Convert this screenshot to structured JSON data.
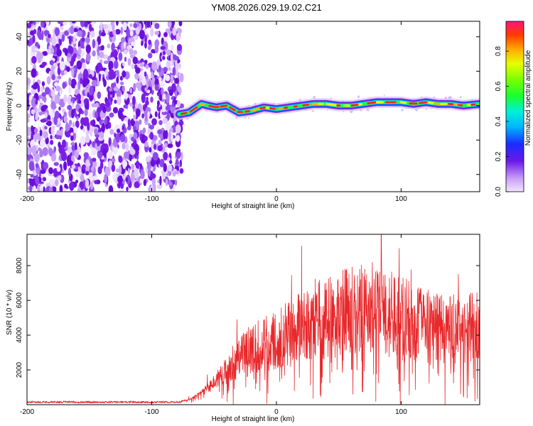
{
  "chart_data": [
    {
      "type": "heatmap",
      "title": "YM08.2026.029.19.02.C21",
      "xlabel": "Height of straight line (km)",
      "ylabel": "Frequency (Hz)",
      "xlim": [
        -200,
        163
      ],
      "ylim": [
        -50,
        49
      ],
      "xticks": [
        -200,
        -100,
        0,
        100
      ],
      "yticks": [
        -40,
        -20,
        0,
        20,
        40
      ],
      "noise_region_x": [
        -200,
        -78
      ],
      "signal_track": {
        "x": [
          -78,
          -70,
          -60,
          -55,
          -48,
          -40,
          -30,
          -20,
          -10,
          0,
          10,
          20,
          30,
          40,
          50,
          60,
          70,
          80,
          90,
          100,
          110,
          120,
          130,
          140,
          150,
          163
        ],
        "y": [
          -5,
          -4,
          1,
          0,
          -1,
          0,
          -4,
          -3,
          -1,
          -2,
          -1,
          0,
          1,
          1,
          0,
          0,
          1,
          2,
          2,
          2,
          1,
          2,
          1,
          1,
          0,
          1
        ]
      },
      "colorbar": {
        "label": "Normalized spectral amplitude",
        "ticks": [
          "0.0",
          "0.2",
          "0.4",
          "0.6",
          "0.8"
        ],
        "range": [
          0,
          0.97
        ]
      },
      "grid": false,
      "legend": "none"
    },
    {
      "type": "line",
      "xlabel": "Height of straight line (km)",
      "ylabel": "SNR (10 * v/v)",
      "xlim": [
        -200,
        163
      ],
      "ylim": [
        0,
        9800
      ],
      "xticks": [
        -200,
        -100,
        0,
        100
      ],
      "yticks": [
        2000,
        4000,
        6000,
        8000
      ],
      "series": [
        {
          "name": "SNR",
          "color": "#e8282b",
          "x": [
            -200,
            -150,
            -100,
            -78,
            -70,
            -60,
            -50,
            -40,
            -30,
            -20,
            -10,
            0,
            10,
            20,
            30,
            40,
            50,
            60,
            70,
            80,
            90,
            100,
            110,
            120,
            130,
            140,
            150,
            163
          ],
          "y": [
            150,
            150,
            150,
            150,
            300,
            700,
            1200,
            1800,
            2300,
            2700,
            3000,
            3200,
            3500,
            3800,
            4100,
            4400,
            4600,
            4700,
            4800,
            4800,
            4600,
            4300,
            4100,
            3900,
            3800,
            3700,
            3700,
            3900
          ]
        }
      ],
      "grid": false,
      "legend": "none"
    }
  ],
  "colors": {
    "signal_line": "#e8282b",
    "noise_dots": "#7a1ee6",
    "axis": "#000000"
  }
}
